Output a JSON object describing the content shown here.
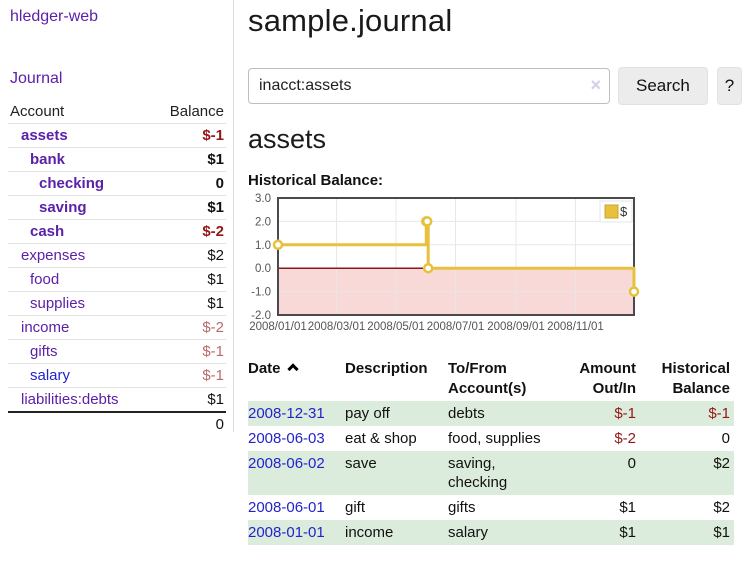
{
  "colors": {
    "purple": "#5b21a8",
    "blue": "#2323cc",
    "neg_strong": "#941717",
    "neg_soft": "#b96a6a",
    "stripe_green": "#dcecdc",
    "chart_line": "#e7c13d",
    "chart_zero_line": "#8c1717",
    "chart_negative_region": "#f9d8d8",
    "chart_grid": "#e7e7e7",
    "chart_border": "#4a4a4a"
  },
  "brand": "hledger-web",
  "nav": {
    "journal": "Journal"
  },
  "sidebar": {
    "header": {
      "account": "Account",
      "balance": "Balance"
    },
    "rows": [
      {
        "name": "assets",
        "balance": "$-1",
        "indent": 1,
        "bold": true,
        "neg": "strong"
      },
      {
        "name": "bank",
        "balance": "$1",
        "indent": 2,
        "bold": true,
        "neg": ""
      },
      {
        "name": "checking",
        "balance": "0",
        "indent": 3,
        "bold": true,
        "neg": ""
      },
      {
        "name": "saving",
        "balance": "$1",
        "indent": 3,
        "bold": true,
        "neg": ""
      },
      {
        "name": "cash",
        "balance": "$-2",
        "indent": 2,
        "bold": true,
        "neg": "strong"
      },
      {
        "name": "expenses",
        "balance": "$2",
        "indent": 1,
        "bold": false,
        "neg": ""
      },
      {
        "name": "food",
        "balance": "$1",
        "indent": 2,
        "bold": false,
        "neg": ""
      },
      {
        "name": "supplies",
        "balance": "$1",
        "indent": 2,
        "bold": false,
        "neg": ""
      },
      {
        "name": "income",
        "balance": "$-2",
        "indent": 1,
        "bold": false,
        "neg": "soft"
      },
      {
        "name": "gifts",
        "balance": "$-1",
        "indent": 2,
        "bold": false,
        "neg": "soft"
      },
      {
        "name": "salary",
        "balance": "$-1",
        "indent": 2,
        "bold": false,
        "neg": "soft",
        "link": "blue"
      },
      {
        "name": "liabilities:debts",
        "balance": "$1",
        "indent": 1,
        "bold": false,
        "neg": ""
      }
    ],
    "total": "0"
  },
  "header": {
    "title": "sample.journal"
  },
  "search": {
    "value": "inacct:assets",
    "clear_icon": "×",
    "button": "Search",
    "help_button": "?"
  },
  "account_page": {
    "title": "assets",
    "chart_label": "Historical Balance:"
  },
  "chart_data": {
    "type": "line",
    "title": "Historical Balance",
    "step": true,
    "series": [
      {
        "name": "$",
        "points": [
          [
            "2008-01-01",
            1
          ],
          [
            "2008-06-01",
            2
          ],
          [
            "2008-06-02",
            2
          ],
          [
            "2008-06-03",
            0
          ],
          [
            "2008-12-31",
            -1
          ]
        ]
      }
    ],
    "x_min": "2008-01-01",
    "x_max": "2008-12-31",
    "ylim": [
      -2,
      3
    ],
    "y_ticks": [
      3,
      2,
      1,
      0,
      -1,
      -2
    ],
    "y_tick_labels": [
      "3.0",
      "2.0",
      "1.0",
      "0.0",
      "-1.0",
      "-2.0"
    ],
    "x_ticks": [
      "2008-01-01",
      "2008-03-01",
      "2008-05-01",
      "2008-07-01",
      "2008-09-01",
      "2008-11-01"
    ],
    "x_tick_labels": [
      "2008/01/01",
      "2008/03/01",
      "2008/05/01",
      "2008/07/01",
      "2008/09/01",
      "2008/11/01"
    ],
    "legend": {
      "label": "$",
      "position": "top-right"
    },
    "grid": true,
    "negative_region_shaded": true
  },
  "register_table": {
    "headers": [
      {
        "lines": [
          "Date"
        ],
        "sort_icon": "chevron-up",
        "align": "left"
      },
      {
        "lines": [
          "Description"
        ],
        "align": "left"
      },
      {
        "lines": [
          "To/From",
          "Account(s)"
        ],
        "align": "left"
      },
      {
        "lines": [
          "Amount",
          "Out/In"
        ],
        "align": "right"
      },
      {
        "lines": [
          "Historical",
          "Balance"
        ],
        "align": "right"
      }
    ],
    "rows": [
      {
        "date": "2008-12-31",
        "description": "pay off",
        "accounts": [
          "debts"
        ],
        "amount": "$-1",
        "amount_negative": true,
        "balance": "$-1",
        "balance_negative": true
      },
      {
        "date": "2008-06-03",
        "description": "eat & shop",
        "accounts": [
          "food, supplies"
        ],
        "amount": "$-2",
        "amount_negative": true,
        "balance": "0",
        "balance_negative": false
      },
      {
        "date": "2008-06-02",
        "description": "save",
        "accounts": [
          "saving,",
          "checking"
        ],
        "amount": "0",
        "amount_negative": false,
        "balance": "$2",
        "balance_negative": false
      },
      {
        "date": "2008-06-01",
        "description": "gift",
        "accounts": [
          "gifts"
        ],
        "amount": "$1",
        "amount_negative": false,
        "balance": "$2",
        "balance_negative": false
      },
      {
        "date": "2008-01-01",
        "description": "income",
        "accounts": [
          "salary"
        ],
        "amount": "$1",
        "amount_negative": false,
        "balance": "$1",
        "balance_negative": false
      }
    ]
  }
}
